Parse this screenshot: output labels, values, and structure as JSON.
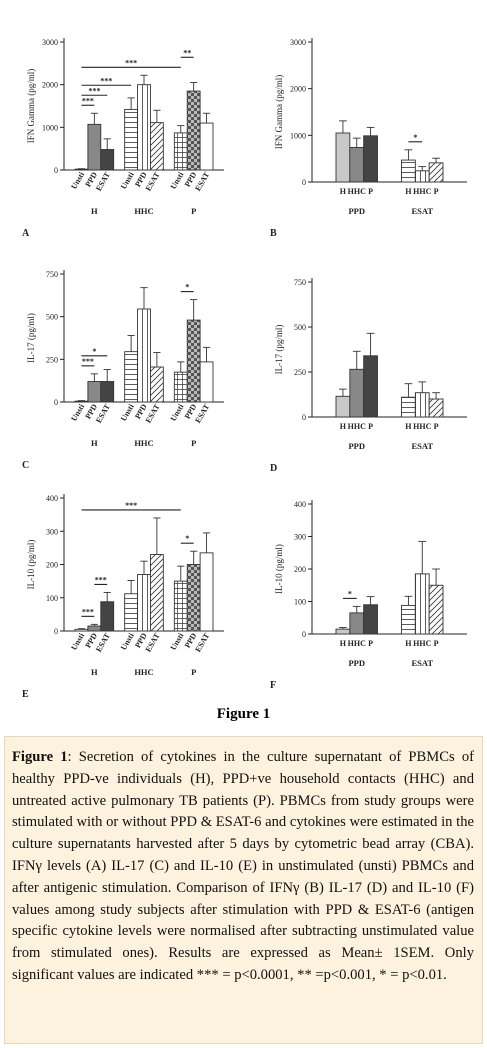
{
  "figure_title": "Figure 1",
  "caption": {
    "label": "Figure 1",
    "text": ": Secretion of cytokines in the culture supernatant of PBMCs of healthy PPD-ve individuals (H), PPD+ve household contacts (HHC) and untreated active pulmonary TB patients (P). PBMCs from study groups were stimulated with or without PPD & ESAT-6 and cytokines were estimated in the culture supernatants harvested after 5 days by cytometric bead array (CBA). IFNγ levels (A) IL-17 (C) and IL-10 (E) in unstimulated (unsti) PBMCs and after antigenic stimulation. Comparison of IFNγ (B) IL-17 (D) and IL-10 (F) values among study subjects after stimulation with PPD & ESAT-6 (antigen specific cytokine levels were normalised after subtracting unstimulated value from stimulated ones). Results are expressed as Mean± 1SEM. Only significant values are indicated *** = p<0.0001, ** =p<0.001, * = p<0.01."
  },
  "colors": {
    "axis": "#222222",
    "bar_outline": "#333333",
    "fill_grey": "#888888",
    "fill_dark": "#444444",
    "fill_light": "#c8c8c8",
    "caption_background": "#fdf2dd"
  },
  "chart_data": [
    {
      "panel": "A",
      "type": "bar",
      "ylabel": "IFN Gamma (pg/ml)",
      "ylim": [
        0,
        3000
      ],
      "yticks": [
        0,
        1000,
        2000,
        3000
      ],
      "bar_labels": [
        "Unsti",
        "PPD",
        "ESAT",
        "Unsti",
        "PPD",
        "ESAT",
        "Unsti",
        "PPD",
        "ESAT"
      ],
      "values": [
        20,
        1070,
        480,
        1420,
        2000,
        1110,
        870,
        1850,
        1100
      ],
      "errors": [
        10,
        260,
        250,
        270,
        220,
        290,
        170,
        200,
        230
      ],
      "fills": [
        "white",
        "grey",
        "dark",
        "hlines",
        "vlines",
        "diag",
        "grid",
        "check",
        "white"
      ],
      "groups": [
        "H",
        "HHC",
        "P"
      ],
      "significance": [
        {
          "from": 0,
          "to": 1,
          "label": "***"
        },
        {
          "from": 0,
          "to": 2,
          "label": "***"
        },
        {
          "from": 0,
          "to": 3,
          "label": "***"
        },
        {
          "from": 0,
          "to": 6,
          "label": "***"
        },
        {
          "from": 6,
          "to": 7,
          "label": "**"
        }
      ]
    },
    {
      "panel": "B",
      "type": "bar",
      "ylabel": "IFN Gamma (pg/ml)",
      "ylim": [
        0,
        3000
      ],
      "yticks": [
        0,
        1000,
        2000,
        3000
      ],
      "bar_labels": [
        "H",
        "HHC",
        "P",
        "H",
        "HHC",
        "P"
      ],
      "values": [
        1050,
        740,
        990,
        470,
        240,
        410
      ],
      "errors": [
        260,
        200,
        180,
        220,
        90,
        100
      ],
      "fills": [
        "light",
        "grey",
        "dark",
        "hlines",
        "vlines",
        "diag"
      ],
      "groups": [
        "PPD",
        "ESAT"
      ],
      "significance": [
        {
          "from": 3,
          "to": 4,
          "label": "*"
        }
      ]
    },
    {
      "panel": "C",
      "type": "bar",
      "ylabel": "IL-17 (pg/ml)",
      "ylim": [
        0,
        750
      ],
      "yticks": [
        0,
        250,
        500,
        750
      ],
      "bar_labels": [
        "Unsti",
        "PPD",
        "ESAT",
        "Unsti",
        "PPD",
        "ESAT",
        "Unsti",
        "PPD",
        "ESAT"
      ],
      "values": [
        5,
        120,
        120,
        295,
        545,
        205,
        175,
        480,
        235
      ],
      "errors": [
        3,
        45,
        70,
        95,
        125,
        85,
        60,
        120,
        85
      ],
      "fills": [
        "white",
        "grey",
        "dark",
        "hlines",
        "vlines",
        "diag",
        "grid",
        "check",
        "white"
      ],
      "groups": [
        "H",
        "HHC",
        "P"
      ],
      "significance": [
        {
          "from": 0,
          "to": 1,
          "label": "***"
        },
        {
          "from": 0,
          "to": 2,
          "label": "*"
        },
        {
          "from": 6,
          "to": 7,
          "label": "*"
        }
      ]
    },
    {
      "panel": "D",
      "type": "bar",
      "ylabel": "IL-17 (pg/ml)",
      "ylim": [
        0,
        750
      ],
      "yticks": [
        0,
        250,
        500,
        750
      ],
      "bar_labels": [
        "H",
        "HHC",
        "P",
        "H",
        "HHC",
        "P"
      ],
      "values": [
        115,
        265,
        340,
        110,
        135,
        100
      ],
      "errors": [
        40,
        100,
        125,
        75,
        60,
        35
      ],
      "fills": [
        "light",
        "grey",
        "dark",
        "hlines",
        "vlines",
        "diag"
      ],
      "groups": [
        "PPD",
        "ESAT"
      ],
      "significance": []
    },
    {
      "panel": "E",
      "type": "bar",
      "ylabel": "IL-10 (pg/ml)",
      "ylim": [
        0,
        400
      ],
      "yticks": [
        0,
        100,
        200,
        300,
        400
      ],
      "bar_labels": [
        "Unsti",
        "PPD",
        "ESAT",
        "Unsti",
        "PPD",
        "ESAT",
        "Unsti",
        "PPD",
        "ESAT"
      ],
      "values": [
        5,
        15,
        88,
        112,
        170,
        230,
        150,
        200,
        235
      ],
      "errors": [
        2,
        5,
        28,
        40,
        40,
        110,
        45,
        40,
        60
      ],
      "fills": [
        "white",
        "grey",
        "dark",
        "hlines",
        "vlines",
        "diag",
        "grid",
        "check",
        "white"
      ],
      "groups": [
        "H",
        "HHC",
        "P"
      ],
      "significance": [
        {
          "from": 0,
          "to": 1,
          "label": "***"
        },
        {
          "from": 1,
          "to": 2,
          "label": "***"
        },
        {
          "from": 0,
          "to": 6,
          "label": "***"
        },
        {
          "from": 6,
          "to": 7,
          "label": "*"
        }
      ]
    },
    {
      "panel": "F",
      "type": "bar",
      "ylabel": "IL-10 (pg/ml)",
      "ylim": [
        0,
        400
      ],
      "yticks": [
        0,
        100,
        200,
        300,
        400
      ],
      "bar_labels": [
        "H",
        "HHC",
        "P",
        "H",
        "HHC",
        "P"
      ],
      "values": [
        15,
        65,
        90,
        88,
        185,
        150
      ],
      "errors": [
        5,
        20,
        25,
        28,
        100,
        50
      ],
      "fills": [
        "light",
        "grey",
        "dark",
        "hlines",
        "vlines",
        "diag"
      ],
      "groups": [
        "PPD",
        "ESAT"
      ],
      "significance": [
        {
          "from": 0,
          "to": 1,
          "label": "*"
        }
      ]
    }
  ]
}
